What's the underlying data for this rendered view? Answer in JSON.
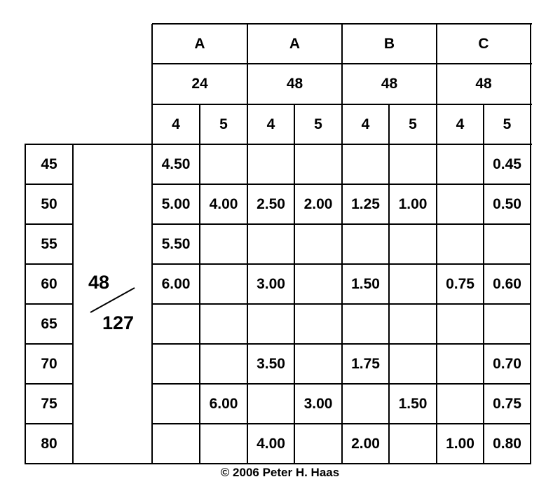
{
  "table": {
    "head_groups": [
      "A",
      "A",
      "B",
      "C"
    ],
    "head_sizes": [
      "24",
      "48",
      "48",
      "48"
    ],
    "head_cols": [
      "4",
      "5",
      "4",
      "5",
      "4",
      "5",
      "4",
      "5"
    ],
    "fraction": {
      "numerator": "48",
      "denominator": "127"
    },
    "rows": [
      {
        "label": "45",
        "cells": [
          "4.50",
          "",
          "",
          "",
          "",
          "",
          "",
          "0.45"
        ]
      },
      {
        "label": "50",
        "cells": [
          "5.00",
          "4.00",
          "2.50",
          "2.00",
          "1.25",
          "1.00",
          "",
          "0.50"
        ]
      },
      {
        "label": "55",
        "cells": [
          "5.50",
          "",
          "",
          "",
          "",
          "",
          "",
          ""
        ]
      },
      {
        "label": "60",
        "cells": [
          "6.00",
          "",
          "3.00",
          "",
          "1.50",
          "",
          "0.75",
          "0.60"
        ]
      },
      {
        "label": "65",
        "cells": [
          "",
          "",
          "",
          "",
          "",
          "",
          "",
          ""
        ]
      },
      {
        "label": "70",
        "cells": [
          "",
          "",
          "3.50",
          "",
          "1.75",
          "",
          "",
          "0.70"
        ]
      },
      {
        "label": "75",
        "cells": [
          "",
          "6.00",
          "",
          "3.00",
          "",
          "1.50",
          "",
          "0.75"
        ]
      },
      {
        "label": "80",
        "cells": [
          "",
          "",
          "4.00",
          "",
          "2.00",
          "",
          "1.00",
          "0.80"
        ]
      }
    ]
  },
  "footer": "© 2006 Peter H. Haas"
}
